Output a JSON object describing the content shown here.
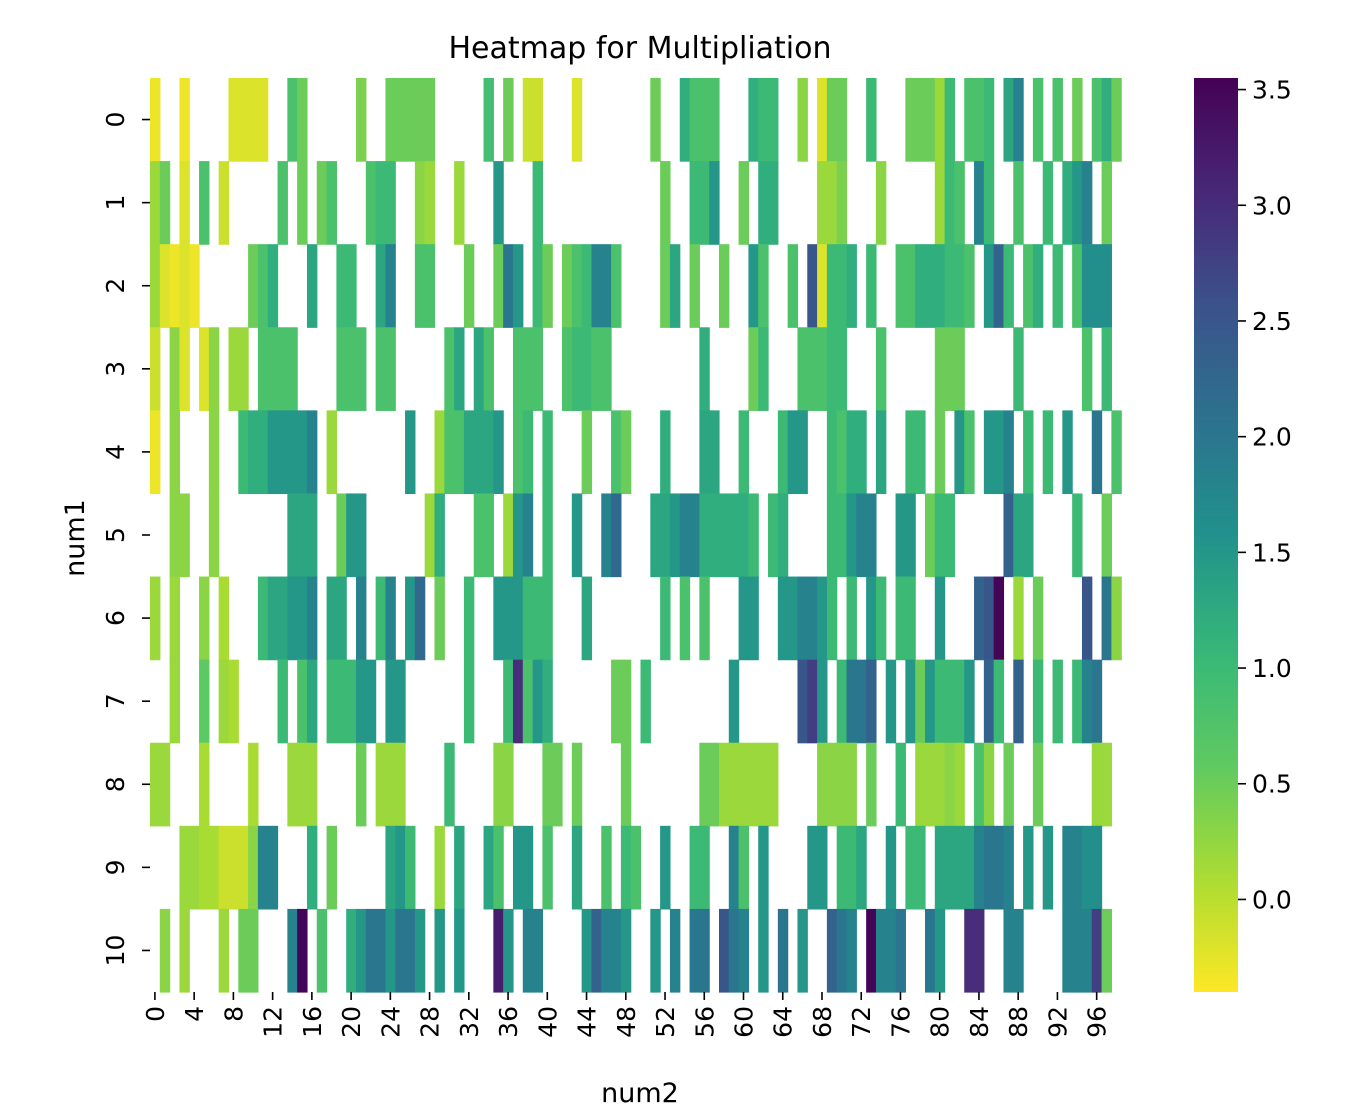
{
  "chart_data": {
    "type": "heatmap",
    "title": "Heatmap for Multipliation",
    "xlabel": "num2",
    "ylabel": "num1",
    "rows": [
      0,
      1,
      2,
      3,
      4,
      5,
      6,
      7,
      8,
      9,
      10
    ],
    "x_range": [
      0,
      99
    ],
    "x_tick_labels": [
      "0",
      "4",
      "8",
      "12",
      "16",
      "20",
      "24",
      "28",
      "32",
      "36",
      "40",
      "44",
      "48",
      "52",
      "56",
      "60",
      "64",
      "68",
      "72",
      "76",
      "80",
      "84",
      "88",
      "92",
      "96"
    ],
    "y_tick_labels": [
      "0",
      "1",
      "2",
      "3",
      "4",
      "5",
      "6",
      "7",
      "8",
      "9",
      "10"
    ],
    "colorbar": {
      "colormap": "viridis_r",
      "vmin": -0.4,
      "vmax": 3.55,
      "tick_labels": [
        "0.0",
        "0.5",
        "1.0",
        "1.5",
        "2.0",
        "2.5",
        "3.0",
        "3.5"
      ],
      "ticks": [
        0.0,
        0.5,
        1.0,
        1.5,
        2.0,
        2.5,
        3.0,
        3.5
      ]
    },
    "values": [
      [
        -0.3,
        null,
        null,
        -0.3,
        null,
        null,
        null,
        null,
        -0.2,
        -0.2,
        -0.2,
        -0.2,
        null,
        null,
        0.8,
        0.5,
        null,
        null,
        null,
        null,
        null,
        0.4,
        null,
        null,
        0.5,
        0.5,
        0.5,
        0.5,
        0.5,
        null,
        null,
        null,
        null,
        null,
        0.9,
        null,
        0.5,
        null,
        -0.1,
        -0.1,
        null,
        null,
        null,
        -0.2,
        null,
        null,
        null,
        null,
        null,
        null,
        null,
        0.5,
        null,
        null,
        1.2,
        0.8,
        0.8,
        0.8,
        null,
        null,
        null,
        1.2,
        1.0,
        1.0,
        null,
        null,
        0.3,
        null,
        -0.2,
        0.5,
        0.5,
        null,
        null,
        1.0,
        null,
        null,
        null,
        0.5,
        0.5,
        0.5,
        0.2,
        1.0,
        null,
        0.8,
        0.8,
        1.0,
        null,
        1.3,
        1.8,
        null,
        0.8,
        null,
        0.8,
        null,
        0.5,
        null,
        0.8,
        1.2,
        0.5
      ],
      [
        0.2,
        0.5,
        null,
        -0.2,
        null,
        0.8,
        null,
        -0.1,
        null,
        null,
        null,
        null,
        null,
        0.8,
        null,
        0.5,
        null,
        0.5,
        0.8,
        null,
        null,
        null,
        0.8,
        1.0,
        1.0,
        null,
        null,
        0.3,
        0.2,
        null,
        null,
        0.2,
        null,
        null,
        null,
        1.5,
        null,
        null,
        null,
        1.0,
        null,
        null,
        null,
        null,
        null,
        null,
        null,
        null,
        null,
        null,
        null,
        null,
        0.5,
        null,
        null,
        1.0,
        1.0,
        1.5,
        null,
        null,
        0.5,
        null,
        1.2,
        1.2,
        null,
        null,
        null,
        null,
        0.2,
        0.2,
        0.4,
        null,
        null,
        null,
        0.3,
        null,
        null,
        null,
        null,
        null,
        0.2,
        1.0,
        0.8,
        null,
        1.8,
        1.0,
        null,
        null,
        0.8,
        null,
        null,
        1.0,
        null,
        1.2,
        1.5,
        1.8,
        null,
        0.5
      ],
      [
        0.2,
        -0.2,
        -0.3,
        -0.2,
        -0.3,
        null,
        null,
        null,
        null,
        null,
        0.5,
        0.8,
        1.2,
        null,
        null,
        null,
        1.3,
        null,
        null,
        1.0,
        1.0,
        null,
        null,
        1.3,
        1.8,
        null,
        null,
        0.8,
        0.8,
        null,
        null,
        null,
        0.5,
        null,
        null,
        0.5,
        2.0,
        1.5,
        null,
        1.0,
        0.5,
        null,
        0.5,
        0.8,
        1.0,
        1.8,
        1.8,
        0.8,
        null,
        null,
        null,
        null,
        0.5,
        1.3,
        null,
        0.5,
        null,
        null,
        0.5,
        null,
        null,
        1.5,
        0.8,
        null,
        null,
        0.8,
        null,
        2.5,
        -0.2,
        1.0,
        1.0,
        1.2,
        null,
        1.0,
        null,
        null,
        0.8,
        0.8,
        1.2,
        1.2,
        1.2,
        1.0,
        1.0,
        0.8,
        null,
        1.5,
        2.3,
        1.0,
        null,
        0.8,
        1.2,
        null,
        1.0,
        null,
        0.8,
        1.6,
        1.6,
        1.6,
        null
      ],
      [
        -0.1,
        null,
        0.3,
        -0.2,
        null,
        -0.2,
        0.3,
        null,
        0.2,
        0.2,
        null,
        0.8,
        0.8,
        0.8,
        0.8,
        null,
        null,
        null,
        null,
        0.8,
        0.8,
        0.8,
        null,
        0.8,
        0.8,
        null,
        null,
        null,
        null,
        null,
        0.8,
        1.3,
        null,
        1.3,
        0.8,
        null,
        null,
        0.8,
        0.8,
        0.8,
        null,
        null,
        0.8,
        1.0,
        1.0,
        0.8,
        0.8,
        null,
        null,
        null,
        null,
        null,
        null,
        null,
        null,
        null,
        1.2,
        null,
        null,
        null,
        null,
        0.5,
        1.0,
        null,
        null,
        null,
        0.8,
        0.8,
        0.8,
        1.0,
        1.0,
        null,
        null,
        null,
        0.8,
        null,
        null,
        null,
        null,
        null,
        0.5,
        0.5,
        0.5,
        null,
        null,
        null,
        null,
        null,
        1.0,
        null,
        null,
        null,
        null,
        null,
        null,
        0.8,
        null,
        1.0,
        null
      ],
      [
        -0.3,
        null,
        0.3,
        null,
        null,
        null,
        0.3,
        null,
        null,
        1.0,
        1.2,
        1.2,
        1.5,
        1.5,
        1.5,
        1.5,
        1.8,
        null,
        0.2,
        null,
        null,
        null,
        null,
        null,
        null,
        null,
        1.5,
        null,
        null,
        0.2,
        0.8,
        0.8,
        1.3,
        1.3,
        1.3,
        1.5,
        null,
        0.8,
        1.0,
        null,
        1.0,
        null,
        null,
        null,
        0.5,
        null,
        null,
        0.8,
        0.5,
        null,
        null,
        null,
        1.2,
        null,
        null,
        null,
        1.3,
        1.3,
        null,
        null,
        1.0,
        null,
        null,
        null,
        1.0,
        1.5,
        1.5,
        null,
        null,
        1.0,
        0.8,
        1.2,
        1.2,
        null,
        1.3,
        null,
        null,
        1.0,
        1.0,
        null,
        0.5,
        null,
        1.5,
        0.8,
        null,
        1.5,
        1.5,
        1.8,
        null,
        1.0,
        null,
        1.0,
        null,
        1.5,
        null,
        null,
        2.0,
        null,
        0.8
      ],
      [
        null,
        null,
        0.3,
        0.3,
        null,
        null,
        0.3,
        null,
        null,
        null,
        null,
        null,
        null,
        null,
        1.3,
        1.3,
        1.3,
        null,
        null,
        0.5,
        1.5,
        1.5,
        null,
        null,
        null,
        null,
        null,
        null,
        0.2,
        1.2,
        null,
        null,
        null,
        0.8,
        0.8,
        null,
        0.2,
        1.5,
        1.8,
        null,
        1.0,
        null,
        null,
        1.5,
        null,
        null,
        1.8,
        2.2,
        null,
        null,
        null,
        1.3,
        1.3,
        1.5,
        1.8,
        1.8,
        1.2,
        1.2,
        1.2,
        1.2,
        1.2,
        1.0,
        null,
        1.0,
        1.2,
        null,
        null,
        null,
        null,
        1.0,
        1.0,
        1.5,
        1.8,
        1.8,
        null,
        null,
        1.5,
        1.5,
        null,
        0.5,
        1.0,
        1.0,
        null,
        null,
        null,
        null,
        null,
        2.3,
        1.3,
        1.3,
        null,
        null,
        null,
        null,
        1.0,
        null,
        null,
        0.5,
        null
      ],
      [
        0.2,
        null,
        0.2,
        null,
        null,
        0.3,
        null,
        0.1,
        null,
        null,
        null,
        1.0,
        1.3,
        1.3,
        1.5,
        1.5,
        1.8,
        null,
        1.3,
        1.3,
        null,
        1.8,
        null,
        1.0,
        1.8,
        null,
        1.5,
        2.2,
        null,
        0.5,
        null,
        null,
        1.0,
        null,
        null,
        1.5,
        1.5,
        1.5,
        1.0,
        1.0,
        1.0,
        null,
        null,
        null,
        1.3,
        null,
        null,
        null,
        null,
        null,
        null,
        null,
        1.0,
        null,
        0.8,
        null,
        0.8,
        null,
        null,
        null,
        1.5,
        1.5,
        null,
        null,
        1.5,
        1.5,
        1.8,
        1.8,
        1.5,
        1.0,
        null,
        1.0,
        null,
        1.5,
        1.0,
        null,
        1.0,
        1.0,
        null,
        null,
        1.5,
        null,
        null,
        null,
        2.3,
        2.5,
        3.5,
        null,
        0.2,
        null,
        0.5,
        null,
        null,
        null,
        null,
        2.5,
        null,
        2.0,
        0.3
      ],
      [
        null,
        null,
        0.2,
        null,
        null,
        0.6,
        null,
        0.2,
        0.1,
        null,
        null,
        null,
        null,
        1.0,
        null,
        0.8,
        1.3,
        null,
        1.0,
        1.0,
        1.0,
        1.5,
        1.5,
        null,
        1.5,
        1.5,
        null,
        null,
        null,
        null,
        null,
        null,
        1.0,
        null,
        null,
        null,
        1.0,
        3.0,
        0.8,
        1.5,
        1.2,
        null,
        null,
        null,
        null,
        null,
        null,
        0.5,
        0.5,
        null,
        1.0,
        null,
        null,
        null,
        null,
        null,
        null,
        null,
        null,
        1.5,
        null,
        null,
        null,
        null,
        null,
        null,
        2.5,
        2.8,
        1.5,
        null,
        1.0,
        2.0,
        2.0,
        2.3,
        null,
        1.5,
        null,
        1.5,
        0.5,
        1.5,
        1.0,
        1.0,
        1.0,
        1.5,
        null,
        2.3,
        1.0,
        null,
        2.3,
        null,
        1.0,
        null,
        1.0,
        null,
        1.0,
        1.8,
        2.0,
        null,
        null
      ],
      [
        0.2,
        0.2,
        null,
        null,
        null,
        0.1,
        null,
        null,
        null,
        null,
        0.1,
        null,
        null,
        null,
        0.2,
        0.2,
        0.2,
        null,
        null,
        null,
        null,
        0.5,
        null,
        0.2,
        0.2,
        0.2,
        null,
        null,
        null,
        null,
        1.0,
        null,
        null,
        null,
        null,
        0.3,
        0.3,
        null,
        null,
        null,
        0.5,
        0.5,
        null,
        0.5,
        null,
        null,
        null,
        null,
        0.5,
        null,
        null,
        null,
        null,
        null,
        null,
        null,
        0.5,
        0.5,
        0.2,
        0.2,
        0.2,
        0.2,
        0.2,
        0.2,
        null,
        null,
        null,
        null,
        0.3,
        0.3,
        0.3,
        0.3,
        null,
        0.5,
        null,
        null,
        1.0,
        null,
        0.2,
        0.2,
        0.2,
        0.3,
        0.2,
        null,
        0.8,
        0.3,
        null,
        0.5,
        null,
        null,
        0.5,
        null,
        null,
        null,
        null,
        null,
        0.2,
        0.2,
        null
      ],
      [
        null,
        null,
        null,
        0.2,
        0.2,
        0.1,
        0.1,
        -0.1,
        -0.1,
        -0.1,
        0.3,
        1.8,
        1.8,
        null,
        null,
        null,
        1.2,
        null,
        0.5,
        null,
        null,
        null,
        null,
        null,
        1.3,
        1.5,
        1.0,
        null,
        null,
        0.2,
        null,
        1.3,
        null,
        null,
        1.3,
        0.8,
        null,
        1.5,
        1.5,
        null,
        0.8,
        null,
        null,
        1.3,
        null,
        null,
        0.8,
        null,
        1.0,
        0.8,
        null,
        null,
        1.5,
        null,
        null,
        1.0,
        1.0,
        null,
        null,
        1.8,
        0.8,
        null,
        1.5,
        null,
        null,
        null,
        null,
        1.5,
        1.5,
        null,
        1.0,
        1.0,
        1.3,
        null,
        null,
        1.5,
        null,
        1.0,
        1.0,
        null,
        1.3,
        1.3,
        1.3,
        1.3,
        1.8,
        2.0,
        2.0,
        1.8,
        null,
        1.5,
        null,
        1.5,
        null,
        1.8,
        1.8,
        1.6,
        1.6,
        null,
        null
      ],
      [
        null,
        0.3,
        null,
        0.2,
        null,
        null,
        null,
        0.2,
        null,
        0.5,
        0.5,
        null,
        null,
        null,
        1.8,
        3.5,
        null,
        0.8,
        null,
        null,
        1.2,
        1.5,
        2.0,
        2.0,
        1.5,
        2.0,
        2.0,
        1.5,
        null,
        1.5,
        null,
        1.5,
        null,
        null,
        null,
        3.2,
        1.5,
        null,
        1.8,
        1.8,
        null,
        null,
        null,
        null,
        1.5,
        2.3,
        1.8,
        1.8,
        1.5,
        null,
        null,
        1.5,
        null,
        1.8,
        null,
        2.0,
        2.0,
        null,
        2.5,
        2.0,
        1.8,
        null,
        1.5,
        null,
        2.0,
        null,
        1.5,
        null,
        null,
        2.3,
        2.0,
        1.8,
        null,
        3.5,
        1.8,
        1.8,
        2.0,
        null,
        null,
        2.0,
        1.5,
        null,
        null,
        3.0,
        3.0,
        null,
        null,
        1.8,
        1.8,
        null,
        null,
        null,
        null,
        1.8,
        1.8,
        1.8,
        2.8,
        0.5,
        null
      ]
    ]
  }
}
